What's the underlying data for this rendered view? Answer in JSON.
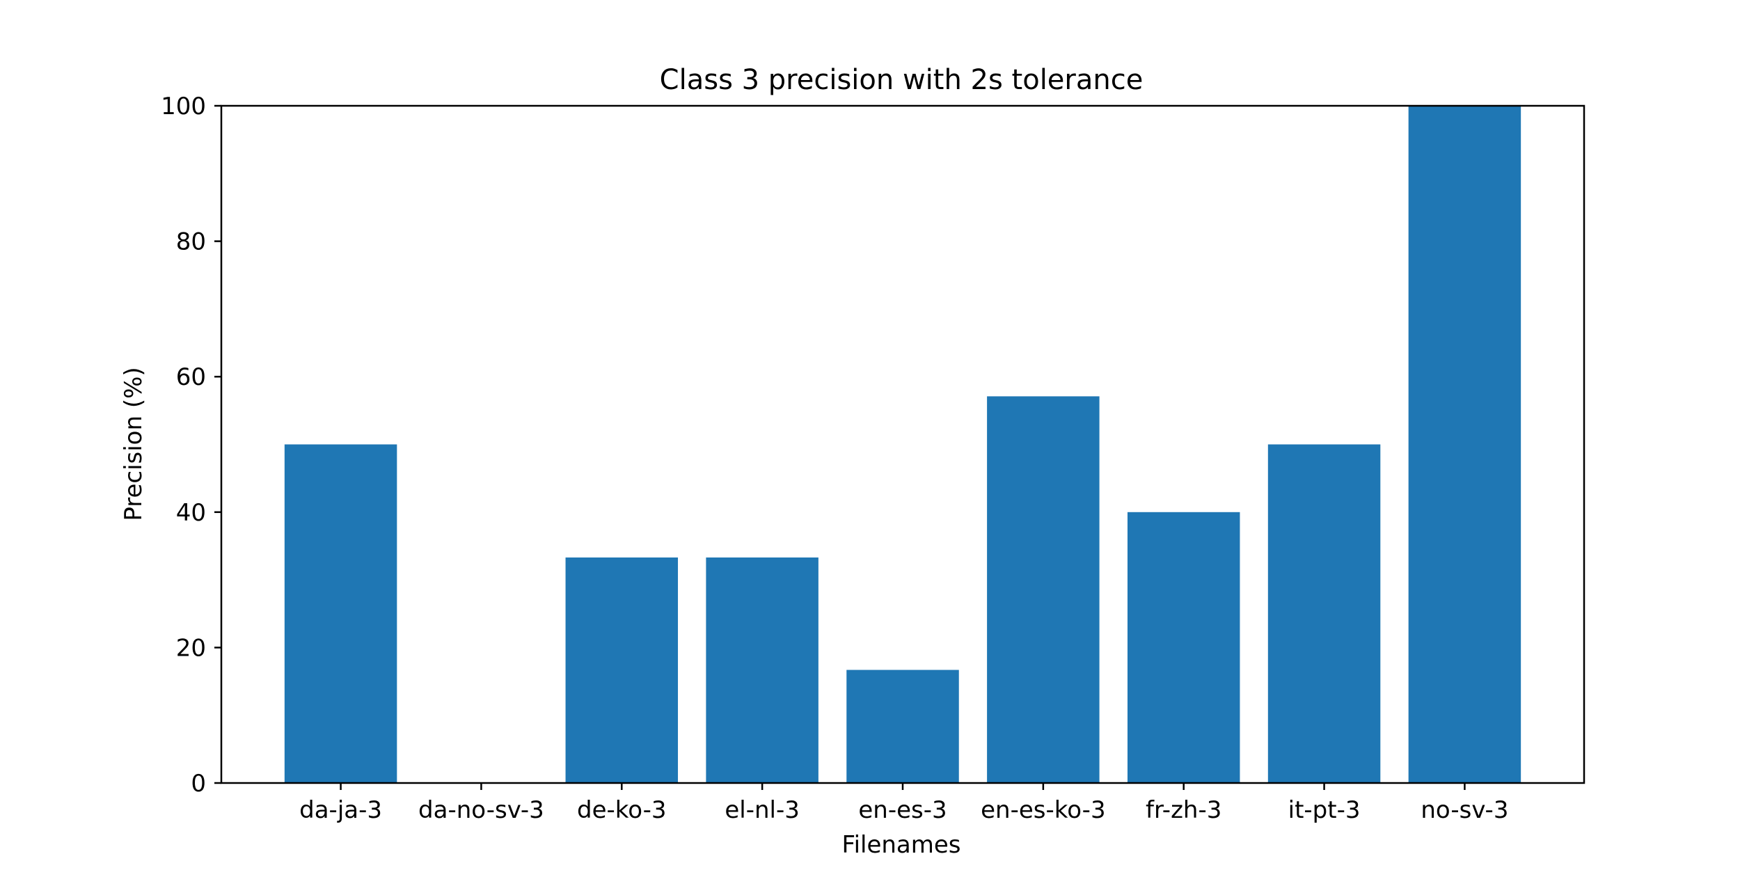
{
  "chart_data": {
    "type": "bar",
    "title": "Class 3 precision with 2s tolerance",
    "xlabel": "Filenames",
    "ylabel": "Precision (%)",
    "categories": [
      "da-ja-3",
      "da-no-sv-3",
      "de-ko-3",
      "el-nl-3",
      "en-es-3",
      "en-es-ko-3",
      "fr-zh-3",
      "it-pt-3",
      "no-sv-3"
    ],
    "values": [
      50,
      0,
      33.3,
      33.3,
      16.7,
      57.1,
      40,
      50,
      100
    ],
    "ylim": [
      0,
      100
    ],
    "yticks": [
      0,
      20,
      40,
      60,
      80,
      100
    ],
    "grid": false,
    "legend": "none",
    "bar_color": "#1f77b4"
  }
}
